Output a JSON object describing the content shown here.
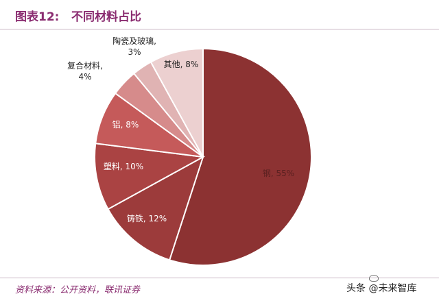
{
  "header": {
    "figure_label": "图表12:",
    "title": "不同材料占比"
  },
  "footer": {
    "source": "资料来源：公开资料，联讯证券",
    "watermark": "头条 @未来智库"
  },
  "chart_data": {
    "type": "pie",
    "slices": [
      {
        "label": "钢",
        "value": 55,
        "display": "钢, 55%",
        "color": "#8c3232"
      },
      {
        "label": "铸铁",
        "value": 12,
        "display": "铸铁, 12%",
        "color": "#9c3b3b"
      },
      {
        "label": "塑料",
        "value": 10,
        "display": "塑料, 10%",
        "color": "#aa4343"
      },
      {
        "label": "铝",
        "value": 8,
        "display": "铝, 8%",
        "color": "#c55a5a"
      },
      {
        "label": "复合材料",
        "value": 4,
        "display": "复合材料,\n4%",
        "color": "#d68b8b"
      },
      {
        "label": "陶瓷及玻璃",
        "value": 3,
        "display": "陶瓷及玻璃,\n3%",
        "color": "#e0b3b3"
      },
      {
        "label": "其他",
        "value": 8,
        "display": "其他, 8%",
        "color": "#ecd0d0"
      }
    ]
  }
}
